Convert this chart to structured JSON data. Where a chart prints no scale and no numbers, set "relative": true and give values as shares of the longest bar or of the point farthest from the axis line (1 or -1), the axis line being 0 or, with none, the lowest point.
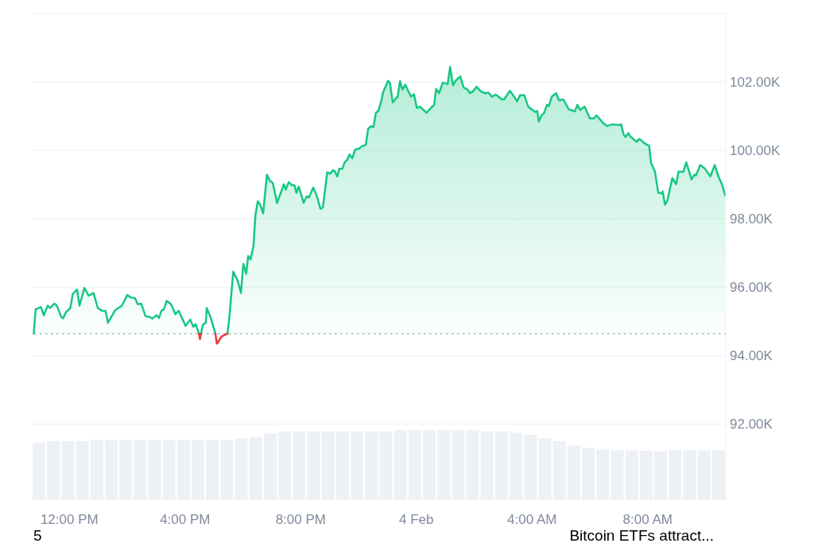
{
  "chart_data": [
    {
      "type": "area",
      "x": [
        "--02-03T10:46",
        "--02-03T10:50",
        "--02-03T11:01",
        "--02-03T11:07",
        "--02-03T11:15",
        "--02-03T11:20",
        "--02-03T11:29",
        "--02-03T11:34",
        "--02-03T11:43",
        "--02-03T11:47",
        "--02-03T11:53",
        "--02-03T12:02",
        "--02-03T12:07",
        "--02-03T12:16",
        "--02-03T12:21",
        "--02-03T12:31",
        "--02-03T12:40",
        "--02-03T12:50",
        "--02-03T12:59",
        "--02-03T13:08",
        "--02-03T13:15",
        "--02-03T13:20",
        "--02-03T13:27",
        "--02-03T13:35",
        "--02-03T13:49",
        "--02-03T14:00",
        "--02-03T14:07",
        "--02-03T14:16",
        "--02-03T14:22",
        "--02-03T14:29",
        "--02-03T14:38",
        "--02-03T14:47",
        "--02-03T14:52",
        "--02-03T15:01",
        "--02-03T15:06",
        "--02-03T15:11",
        "--02-03T15:16",
        "--02-03T15:22",
        "--02-03T15:31",
        "--02-03T15:40",
        "--02-03T15:47",
        "--02-03T16:01",
        "--02-03T16:11",
        "--02-03T16:17",
        "--02-03T16:22",
        "--02-03T16:29",
        "--02-03T16:31",
        "--02-03T16:33",
        "--02-03T16:37",
        "--02-03T16:43",
        "--02-03T16:45",
        "--02-03T16:53",
        "--02-03T17:02",
        "--02-03T17:03",
        "--02-03T17:06",
        "--02-03T17:16",
        "--02-03T17:23",
        "--02-03T17:28",
        "--02-03T17:32",
        "--02-03T17:40",
        "--02-03T17:49",
        "--02-03T17:56",
        "--02-03T18:01",
        "--02-03T18:07",
        "--02-03T18:11",
        "--02-03T18:16",
        "--02-03T18:22",
        "--02-03T18:26",
        "--02-03T18:31",
        "--02-03T18:36",
        "--02-03T18:42",
        "--02-03T18:50",
        "--02-03T18:56",
        "--02-03T19:02",
        "--02-03T19:11",
        "--02-03T19:25",
        "--02-03T19:29",
        "--02-03T19:35",
        "--02-03T19:42",
        "--02-03T19:47",
        "--02-03T19:51",
        "--02-03T19:56",
        "--02-03T20:06",
        "--02-03T20:13",
        "--02-03T20:17",
        "--02-03T20:26",
        "--02-03T20:34",
        "--02-03T20:41",
        "--02-03T20:46",
        "--02-03T20:55",
        "--02-03T21:01",
        "--02-03T21:07",
        "--02-03T21:10",
        "--02-03T21:16",
        "--02-03T21:20",
        "--02-03T21:27",
        "--02-03T21:31",
        "--02-03T21:37",
        "--02-03T21:41",
        "--02-03T21:47",
        "--02-03T21:53",
        "--02-03T22:02",
        "--02-03T22:07",
        "--02-03T22:15",
        "--02-03T22:20",
        "--02-03T22:26",
        "--02-03T22:31",
        "--02-03T22:36",
        "--02-03T22:41",
        "--02-03T22:47",
        "--02-03T22:51",
        "--02-03T23:01",
        "--02-03T23:05",
        "--02-03T23:11",
        "--02-03T23:19",
        "--02-03T23:21",
        "--02-03T23:26",
        "--02-03T23:31",
        "--02-03T23:37",
        "--02-03T23:43",
        "--02-03T23:49",
        "--02-03T23:55",
        "--02-04T00:01",
        "--02-04T00:07",
        "--02-04T00:21",
        "--02-04T00:33",
        "--02-04T00:37",
        "--02-04T00:41",
        "--02-04T00:47",
        "--02-04T00:55",
        "--02-04T01:05",
        "--02-04T01:10",
        "--02-04T01:16",
        "--02-04T01:21",
        "--02-04T01:31",
        "--02-04T01:38",
        "--02-04T01:46",
        "--02-04T01:51",
        "--02-04T01:57",
        "--02-04T02:05",
        "--02-04T02:14",
        "--02-04T02:23",
        "--02-04T02:29",
        "--02-04T02:37",
        "--02-04T02:44",
        "--02-04T02:49",
        "--02-04T02:57",
        "--02-04T03:02",
        "--02-04T03:14",
        "--02-04T03:22",
        "--02-04T03:29",
        "--02-04T03:35",
        "--02-04T03:44",
        "--02-04T03:52",
        "--02-04T03:59",
        "--02-04T04:07",
        "--02-04T04:11",
        "--02-04T04:14",
        "--02-04T04:19",
        "--02-04T04:25",
        "--02-04T04:31",
        "--02-04T04:35",
        "--02-04T04:41",
        "--02-04T04:50",
        "--02-04T04:56",
        "--02-04T05:05",
        "--02-04T05:16",
        "--02-04T05:29",
        "--02-04T05:34",
        "--02-04T05:40",
        "--02-04T05:49",
        "--02-04T06:00",
        "--02-04T06:08",
        "--02-04T06:14",
        "--02-04T06:28",
        "--02-04T06:36",
        "--02-04T06:46",
        "--02-04T07:01",
        "--02-04T07:05",
        "--02-04T07:10",
        "--02-04T07:14",
        "--02-04T07:20",
        "--02-04T07:25",
        "--02-04T07:32",
        "--02-04T07:37",
        "--02-04T07:42",
        "--02-04T07:46",
        "--02-04T07:52",
        "--02-04T07:59",
        "--02-04T08:03",
        "--02-04T08:07",
        "--02-04T08:15",
        "--02-04T08:22",
        "--02-04T08:29",
        "--02-04T08:31",
        "--02-04T08:36",
        "--02-04T08:41",
        "--02-04T08:51",
        "--02-04T08:59",
        "--02-04T09:04",
        "--02-04T09:14",
        "--02-04T09:20",
        "--02-04T09:31",
        "--02-04T09:37",
        "--02-04T09:40",
        "--02-04T09:49",
        "--02-04T09:59",
        "--02-04T10:10",
        "--02-04T10:19",
        "--02-04T10:27",
        "--02-04T10:34",
        "--02-04T10:41"
      ],
      "xlim": [
        "--02-03T10:42",
        "--02-04T10:42"
      ],
      "xticks": [
        {
          "value": "--02-03T12:00",
          "label": "12:00 PM"
        },
        {
          "value": "--02-03T16:00",
          "label": "4:00 PM"
        },
        {
          "value": "--02-03T20:00",
          "label": "8:00 PM"
        },
        {
          "value": "--02-04",
          "label": "4 Feb"
        },
        {
          "value": "--02-04T04:00",
          "label": "4:00 AM"
        },
        {
          "value": "--02-04T08:00",
          "label": "8:00 AM"
        }
      ],
      "ylim": [
        89800,
        104000
      ],
      "yticks": [
        {
          "value": 92000,
          "label": "92.00K"
        },
        {
          "value": 94000,
          "label": "94.00K"
        },
        {
          "value": 96000,
          "label": "96.00K"
        },
        {
          "value": 98000,
          "label": "98.00K"
        },
        {
          "value": 100000,
          "label": "100.00K"
        },
        {
          "value": 102000,
          "label": "102.00K"
        }
      ],
      "grid": "y",
      "series": [
        {
          "color": "#16c784",
          "values": [
            94640,
            95350,
            95420,
            95180,
            95460,
            95390,
            95520,
            95460,
            95130,
            95090,
            95270,
            95390,
            95800,
            95930,
            95460,
            95980,
            95750,
            95830,
            95390,
            95310,
            95310,
            94960,
            95130,
            95330,
            95460,
            95770,
            95700,
            95680,
            95500,
            95520,
            95150,
            95130,
            95080,
            95180,
            95100,
            95310,
            95350,
            95600,
            95500,
            95210,
            95310,
            94870,
            95050,
            94840,
            94920,
            94640,
            null,
            94640,
            94900,
            94960,
            95390,
            95120,
            94690,
            94640,
            null,
            null,
            null,
            94640,
            95120,
            96450,
            96200,
            95830,
            96680,
            96390,
            96910,
            96810,
            97210,
            98100,
            98510,
            98410,
            98160,
            99290,
            99110,
            99050,
            98460,
            99010,
            98850,
            99070,
            98980,
            98980,
            98760,
            98940,
            98470,
            98660,
            98620,
            98910,
            98640,
            98290,
            98330,
            99360,
            99320,
            99420,
            99400,
            99240,
            99460,
            99470,
            99650,
            99730,
            99880,
            99770,
            100020,
            100060,
            100120,
            100160,
            100630,
            100710,
            100680,
            101100,
            101150,
            101430,
            101700,
            102030,
            101980,
            101400,
            101550,
            101550,
            102020,
            101780,
            101920,
            101740,
            101570,
            101640,
            101240,
            101280,
            101100,
            101280,
            101330,
            101800,
            101670,
            101980,
            101940,
            102440,
            101900,
            102030,
            102160,
            101840,
            101780,
            101670,
            101720,
            101860,
            101720,
            101670,
            101690,
            101570,
            101630,
            101590,
            101490,
            101490,
            101740,
            101590,
            101430,
            101610,
            101610,
            101280,
            101200,
            101120,
            101150,
            100840,
            101010,
            101090,
            101330,
            101300,
            101570,
            101670,
            101460,
            101490,
            101200,
            101140,
            101330,
            101180,
            101280,
            100930,
            100930,
            101020,
            100790,
            100710,
            100760,
            100740,
            100760,
            100460,
            100390,
            100500,
            100390,
            100310,
            100250,
            100330,
            100300,
            100220,
            100160,
            100140,
            99630,
            99380,
            98760,
            98740,
            98800,
            98410,
            98540,
            99190,
            99010,
            99380,
            99370,
            99650,
            99150,
            99290,
            99260,
            99570,
            99460,
            99240,
            99570,
            99230,
            99010,
            98680
          ]
        },
        {
          "type": "line",
          "color": "#ea3943",
          "x": [
            "--02-03T16:29",
            "--02-03T16:31",
            "--02-03T16:33",
            "--02-03T16:48",
            "--02-03T17:03",
            "--02-03T17:06",
            "--02-03T17:16",
            "--02-03T17:23",
            "--02-03T17:28"
          ],
          "values": [
            94640,
            94480,
            94640,
            null,
            94640,
            94350,
            94560,
            94610,
            94640
          ]
        }
      ],
      "ref_lines": [
        {
          "axis": "y",
          "value": 94640,
          "color": "#a6b0c3",
          "line_style": "dotted"
        }
      ],
      "annotations": [
        "5",
        "Bitcoin ETFs attract..."
      ]
    },
    {
      "type": "bar",
      "relative": true,
      "categories": [
        null,
        null,
        null,
        null,
        null,
        null,
        null,
        null,
        null,
        null,
        null,
        null,
        null,
        null,
        null,
        null,
        null,
        null,
        null,
        null,
        null,
        null,
        null,
        null,
        null,
        null,
        null,
        null,
        null,
        null,
        null,
        null,
        null,
        null,
        null,
        null,
        null,
        null,
        null,
        null,
        null,
        null,
        null,
        null,
        null,
        null,
        null,
        null
      ],
      "values": [
        0.82,
        0.84,
        0.84,
        0.84,
        0.86,
        0.86,
        0.86,
        0.86,
        0.86,
        0.86,
        0.86,
        0.86,
        0.86,
        0.86,
        0.88,
        0.9,
        0.95,
        0.98,
        0.98,
        0.98,
        0.98,
        0.98,
        0.98,
        0.98,
        0.98,
        1,
        1,
        1,
        1,
        1,
        1,
        0.98,
        0.98,
        0.96,
        0.93,
        0.88,
        0.84,
        0.78,
        0.74,
        0.72,
        0.71,
        0.71,
        0.7,
        0.69,
        0.71,
        0.71,
        0.71,
        0.71
      ],
      "color": "#edf0f4"
    }
  ]
}
